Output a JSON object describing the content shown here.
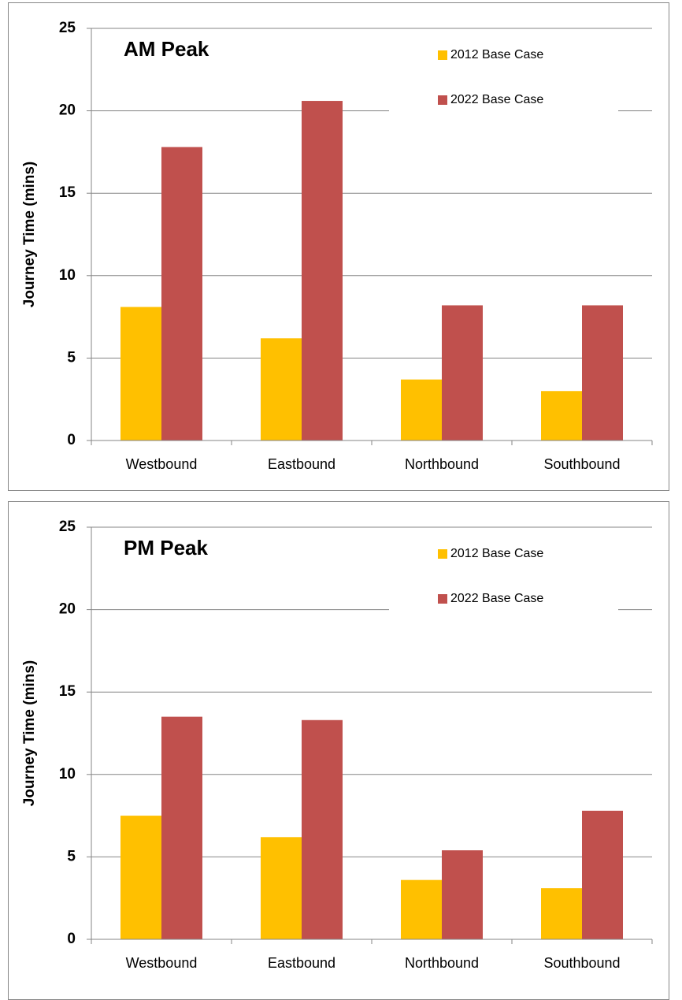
{
  "chart_data": [
    {
      "type": "bar",
      "title": "AM Peak",
      "y_label": "Journey Time (mins)",
      "categories": [
        "Westbound",
        "Eastbound",
        "Northbound",
        "Southbound"
      ],
      "series": [
        {
          "name": "2012 Base Case",
          "color": "#ffc000",
          "values": [
            8.1,
            6.2,
            3.7,
            3.0
          ]
        },
        {
          "name": "2022 Base Case",
          "color": "#c0504d",
          "values": [
            17.8,
            20.6,
            8.2,
            8.2
          ]
        }
      ],
      "ylim": [
        0,
        25
      ],
      "yticks": [
        0,
        5,
        10,
        15,
        20,
        25
      ],
      "grid": true,
      "legend": "top-right"
    },
    {
      "type": "bar",
      "title": "PM Peak",
      "y_label": "Journey Time (mins)",
      "categories": [
        "Westbound",
        "Eastbound",
        "Northbound",
        "Southbound"
      ],
      "series": [
        {
          "name": "2012 Base Case",
          "color": "#ffc000",
          "values": [
            7.5,
            6.2,
            3.6,
            3.1
          ]
        },
        {
          "name": "2022 Base Case",
          "color": "#c0504d",
          "values": [
            13.5,
            13.3,
            5.4,
            7.8
          ]
        }
      ],
      "ylim": [
        0,
        25
      ],
      "yticks": [
        0,
        5,
        10,
        15,
        20,
        25
      ],
      "grid": true,
      "legend": "top-right"
    }
  ]
}
